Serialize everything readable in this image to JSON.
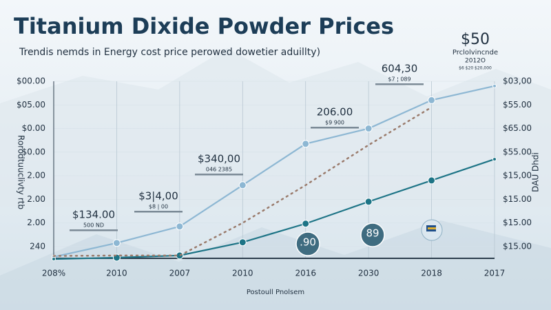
{
  "chart_data": {
    "type": "line",
    "title": "Titanium Dixide Powder Prices",
    "subtitle": "Trendis nemds in Energy cost price perowed dowetier aduillty)",
    "y_label": "Rorodtuuclivty rtb",
    "y2_label": "DAU Dhdi",
    "x_label": "Postoull Pnolsem",
    "categories": [
      "208%",
      "2010",
      "2007",
      "2010",
      "2016",
      "2030",
      "2018",
      "2017"
    ],
    "series": [
      {
        "color": "#8db7d3",
        "style": "solid",
        "values": [
          0.56,
          1.15,
          1.85,
          3.6,
          5.35,
          6.0,
          7.2,
          7.8
        ]
      },
      {
        "color": "#1d7486",
        "style": "solid",
        "values": [
          0.47,
          0.53,
          0.62,
          1.18,
          1.97,
          2.9,
          3.8,
          4.7
        ]
      },
      {
        "color": "#9a7b6c",
        "style": "dotted",
        "values": [
          0.6,
          0.62,
          0.62,
          2.0,
          3.6,
          5.3,
          6.9,
          null
        ]
      }
    ],
    "ylim": [
      0.5,
      8
    ],
    "yticks": [
      {
        "value": 1,
        "label": "240"
      },
      {
        "value": 2,
        "label": "2.00"
      },
      {
        "value": 3,
        "label": "2.00"
      },
      {
        "value": 4,
        "label": "2.00"
      },
      {
        "value": 5,
        "label": "$0.00"
      },
      {
        "value": 6,
        "label": "$0.00"
      },
      {
        "value": 7,
        "label": "$05.00"
      },
      {
        "value": 8,
        "label": "$00.00"
      }
    ],
    "y2lim": [
      0.5,
      8
    ],
    "y2ticks": [
      {
        "value": 1,
        "label": "$15.00"
      },
      {
        "value": 2,
        "label": "$15.00"
      },
      {
        "value": 3,
        "label": "$15.00"
      },
      {
        "value": 4,
        "label": "$15,00"
      },
      {
        "value": 5,
        "label": "$55.00"
      },
      {
        "value": 6,
        "label": "$65.00"
      },
      {
        "value": 7,
        "label": "$55.00"
      },
      {
        "value": 8,
        "label": "$03,00"
      }
    ],
    "grid": true,
    "annotations": [
      {
        "text": "$134.00",
        "sub": "500 ND"
      },
      {
        "text": "$3|4,00",
        "sub": "$8 | 00"
      },
      {
        "text": "$340,00",
        "sub": "046 2385"
      },
      {
        "text": "206.00",
        "sub": "$9 900"
      },
      {
        "text": "604,30",
        "sub": "$7 ¦ 089"
      },
      {
        "text": "$50",
        "sub": "Prclolvincnde"
      }
    ],
    "corner_note": "2012O",
    "corner_small": "$6 $20 $20,000",
    "badges": [
      ".90",
      "89"
    ]
  }
}
